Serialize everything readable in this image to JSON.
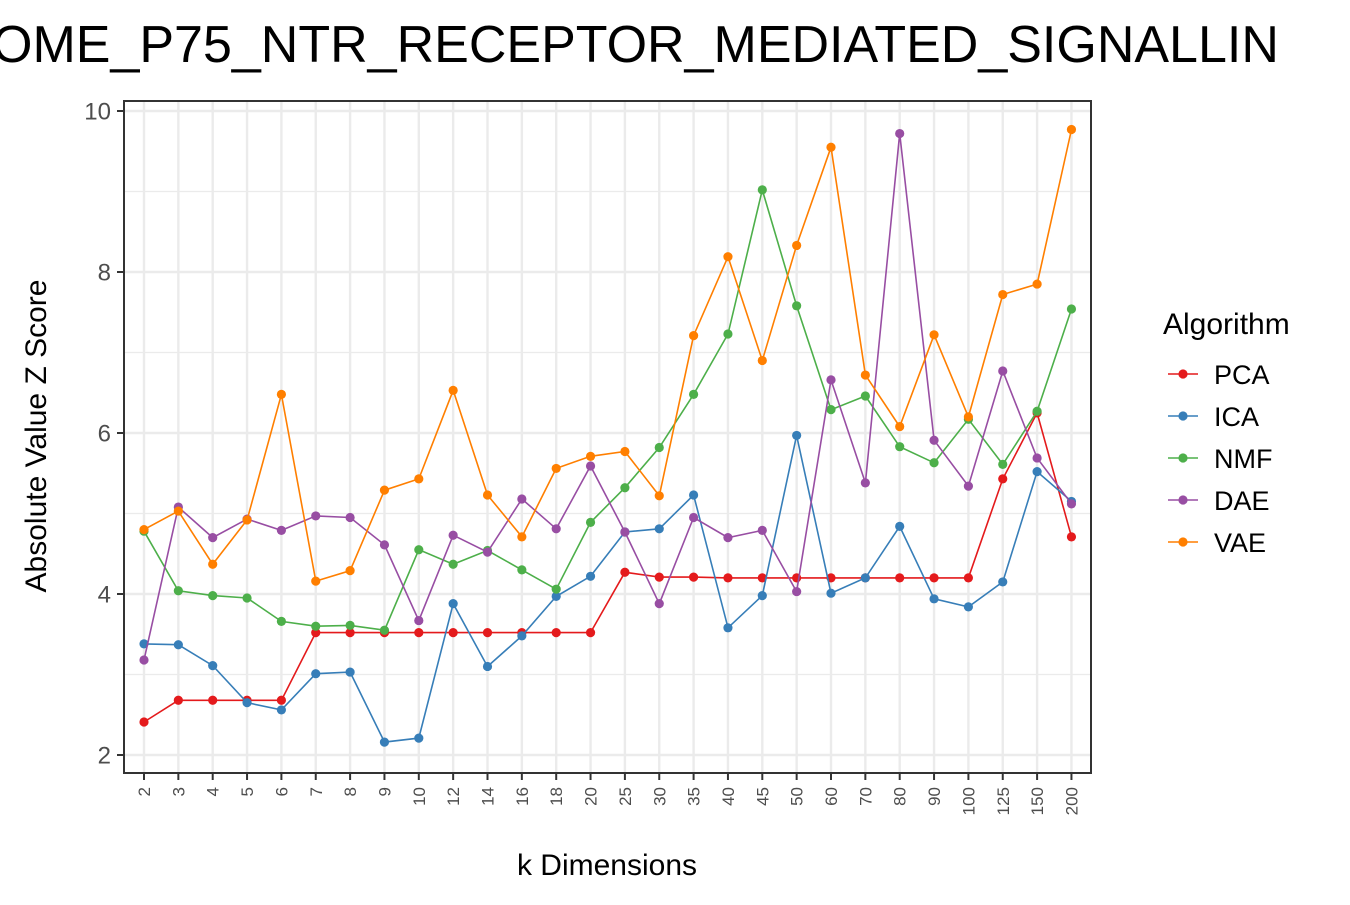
{
  "chart_data": {
    "type": "line",
    "title": "OME_P75_NTR_RECEPTOR_MEDIATED_SIGNALLIN",
    "xlabel": "k Dimensions",
    "ylabel": "Absolute Value Z Score",
    "x_axis_type": "categorical",
    "categories": [
      "2",
      "3",
      "4",
      "5",
      "6",
      "7",
      "8",
      "9",
      "10",
      "12",
      "14",
      "16",
      "18",
      "20",
      "25",
      "30",
      "35",
      "40",
      "45",
      "50",
      "60",
      "70",
      "80",
      "90",
      "100",
      "125",
      "150",
      "200"
    ],
    "yticks": [
      "2",
      "4",
      "6",
      "8",
      "10"
    ],
    "ylim": [
      1.8,
      10.3
    ],
    "grid": true,
    "legend": {
      "title": "Algorithm",
      "placement": "right",
      "entries": [
        "PCA",
        "ICA",
        "NMF",
        "DAE",
        "VAE"
      ]
    },
    "series": [
      {
        "name": "PCA",
        "color": "#e41a1c",
        "values": [
          2.41,
          2.68,
          2.68,
          2.68,
          2.68,
          3.52,
          3.52,
          3.52,
          3.52,
          3.52,
          3.52,
          3.52,
          3.52,
          3.52,
          4.27,
          4.21,
          4.21,
          4.2,
          4.2,
          4.2,
          4.2,
          4.2,
          4.2,
          4.2,
          4.2,
          5.43,
          6.25,
          4.71
        ]
      },
      {
        "name": "ICA",
        "color": "#377eb8",
        "values": [
          3.38,
          3.37,
          3.11,
          2.65,
          2.56,
          3.01,
          3.03,
          2.16,
          2.21,
          3.88,
          3.1,
          3.48,
          3.97,
          4.22,
          4.77,
          4.81,
          5.23,
          3.58,
          3.98,
          5.97,
          4.01,
          4.2,
          4.84,
          3.94,
          3.84,
          4.15,
          5.52,
          5.15
        ]
      },
      {
        "name": "NMF",
        "color": "#4daf4a",
        "values": [
          4.78,
          4.04,
          3.98,
          3.95,
          3.66,
          3.6,
          3.61,
          3.55,
          4.55,
          4.37,
          4.54,
          4.3,
          4.06,
          4.89,
          5.32,
          5.82,
          6.48,
          7.23,
          9.02,
          7.58,
          6.29,
          6.46,
          5.83,
          5.63,
          6.17,
          5.61,
          6.27,
          7.54
        ]
      },
      {
        "name": "DAE",
        "color": "#984ea3",
        "values": [
          3.18,
          5.08,
          4.7,
          4.93,
          4.79,
          4.97,
          4.95,
          4.61,
          3.67,
          4.73,
          4.52,
          5.18,
          4.81,
          5.59,
          4.77,
          3.88,
          4.95,
          4.7,
          4.79,
          4.03,
          6.66,
          5.38,
          9.72,
          5.91,
          5.34,
          6.77,
          5.69,
          5.12
        ]
      },
      {
        "name": "VAE",
        "color": "#ff7f00",
        "values": [
          4.8,
          5.03,
          4.37,
          4.92,
          6.48,
          4.16,
          4.29,
          5.29,
          5.43,
          6.53,
          5.23,
          4.71,
          5.56,
          5.71,
          5.77,
          5.22,
          7.21,
          8.19,
          6.9,
          8.33,
          9.55,
          6.72,
          6.08,
          7.22,
          6.2,
          7.72,
          7.85,
          9.77
        ]
      }
    ]
  }
}
